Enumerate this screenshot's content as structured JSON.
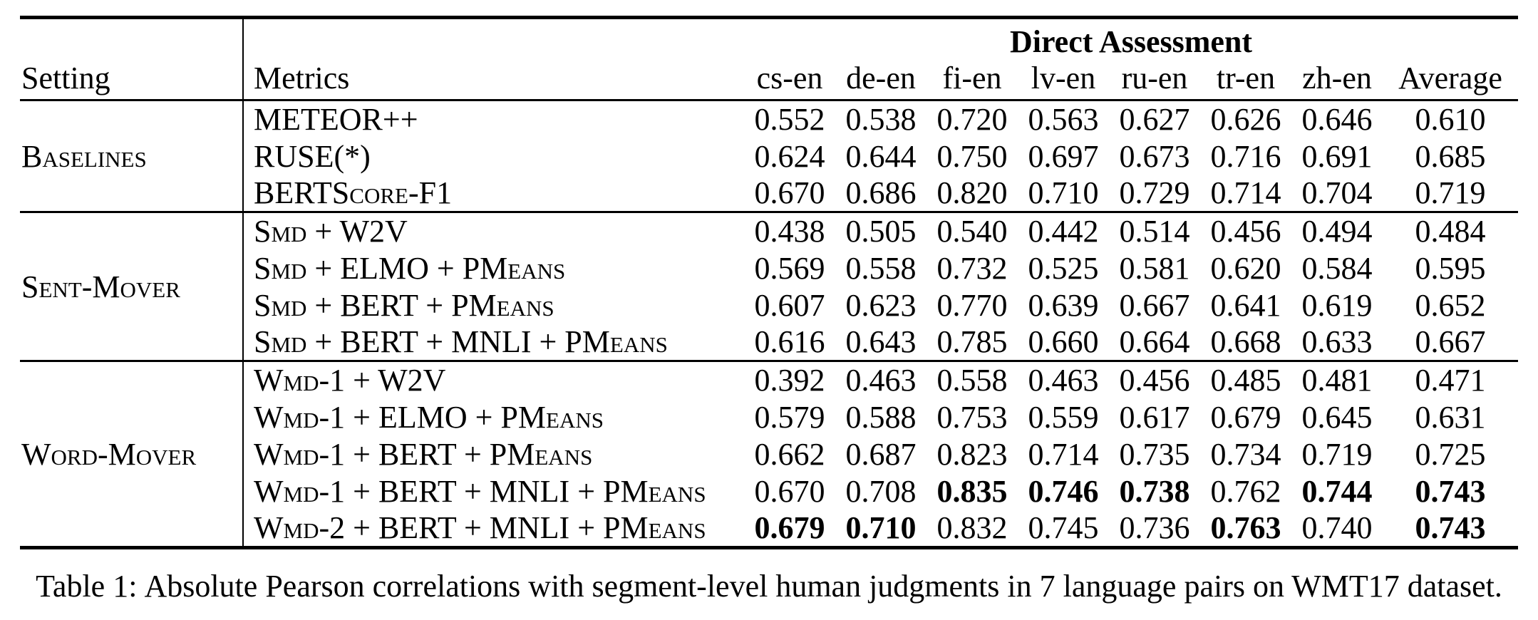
{
  "table": {
    "group_header": "Direct Assessment",
    "columns": {
      "setting": "Setting",
      "metrics": "Metrics"
    },
    "lang_columns": [
      "cs-en",
      "de-en",
      "fi-en",
      "lv-en",
      "ru-en",
      "tr-en",
      "zh-en",
      "Average"
    ],
    "sections": [
      {
        "setting": "Baselines",
        "rows": [
          {
            "metric": "METEOR++",
            "values": [
              "0.552",
              "0.538",
              "0.720",
              "0.563",
              "0.627",
              "0.626",
              "0.646",
              "0.610"
            ],
            "bold": []
          },
          {
            "metric": "RUSE(*)",
            "values": [
              "0.624",
              "0.644",
              "0.750",
              "0.697",
              "0.673",
              "0.716",
              "0.691",
              "0.685"
            ],
            "bold": []
          },
          {
            "metric": "BERTScore-F1",
            "values": [
              "0.670",
              "0.686",
              "0.820",
              "0.710",
              "0.729",
              "0.714",
              "0.704",
              "0.719"
            ],
            "bold": []
          }
        ]
      },
      {
        "setting": "Sent-Mover",
        "rows": [
          {
            "metric": "Smd + W2V",
            "values": [
              "0.438",
              "0.505",
              "0.540",
              "0.442",
              "0.514",
              "0.456",
              "0.494",
              "0.484"
            ],
            "bold": []
          },
          {
            "metric": "Smd + ELMO + PMeans",
            "values": [
              "0.569",
              "0.558",
              "0.732",
              "0.525",
              "0.581",
              "0.620",
              "0.584",
              "0.595"
            ],
            "bold": []
          },
          {
            "metric": "Smd + BERT + PMeans",
            "values": [
              "0.607",
              "0.623",
              "0.770",
              "0.639",
              "0.667",
              "0.641",
              "0.619",
              "0.652"
            ],
            "bold": []
          },
          {
            "metric": "Smd + BERT + MNLI + PMeans",
            "values": [
              "0.616",
              "0.643",
              "0.785",
              "0.660",
              "0.664",
              "0.668",
              "0.633",
              "0.667"
            ],
            "bold": []
          }
        ]
      },
      {
        "setting": "Word-Mover",
        "rows": [
          {
            "metric": "Wmd-1 + W2V",
            "values": [
              "0.392",
              "0.463",
              "0.558",
              "0.463",
              "0.456",
              "0.485",
              "0.481",
              "0.471"
            ],
            "bold": []
          },
          {
            "metric": "Wmd-1 + ELMO + PMeans",
            "values": [
              "0.579",
              "0.588",
              "0.753",
              "0.559",
              "0.617",
              "0.679",
              "0.645",
              "0.631"
            ],
            "bold": []
          },
          {
            "metric": "Wmd-1 + BERT + PMeans",
            "values": [
              "0.662",
              "0.687",
              "0.823",
              "0.714",
              "0.735",
              "0.734",
              "0.719",
              "0.725"
            ],
            "bold": []
          },
          {
            "metric": "Wmd-1 + BERT + MNLI + PMeans",
            "values": [
              "0.670",
              "0.708",
              "0.835",
              "0.746",
              "0.738",
              "0.762",
              "0.744",
              "0.743"
            ],
            "bold": [
              2,
              3,
              4,
              6,
              7
            ]
          },
          {
            "metric": "Wmd-2 + BERT + MNLI + PMeans",
            "values": [
              "0.679",
              "0.710",
              "0.832",
              "0.745",
              "0.736",
              "0.763",
              "0.740",
              "0.743"
            ],
            "bold": [
              0,
              1,
              5,
              7
            ]
          }
        ]
      }
    ]
  },
  "caption": {
    "label": "Table 1:",
    "text": "Absolute Pearson correlations with segment-level human judgments in 7 language pairs on WMT17 dataset."
  }
}
